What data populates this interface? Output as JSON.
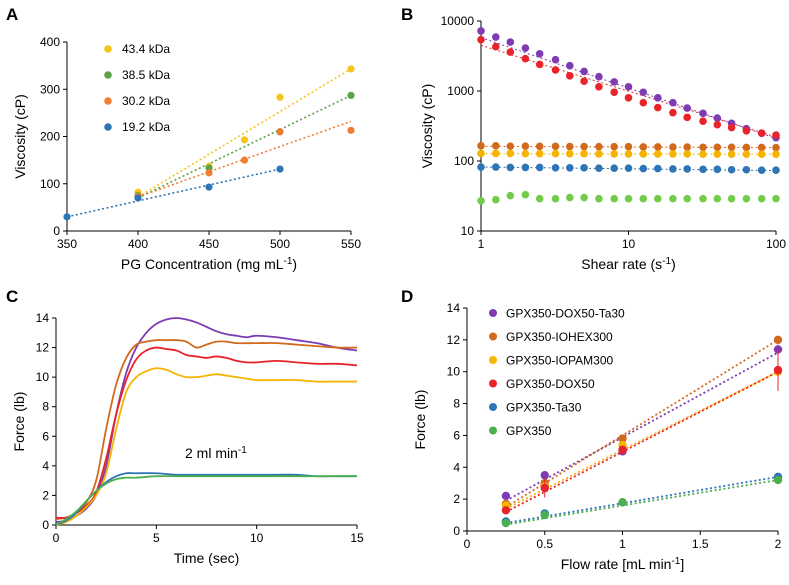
{
  "chart_data": [
    {
      "panel": "A",
      "type": "scatter",
      "xlabel": "PG Concentration (mg mL",
      "xlabel_sup": "-1",
      "xlabel_end": ")",
      "ylabel": "Viscosity (cP)",
      "xlim": [
        350,
        550
      ],
      "ylim": [
        0,
        400
      ],
      "xticks": [
        350,
        400,
        450,
        500,
        550
      ],
      "yticks": [
        0,
        100,
        200,
        300,
        400
      ],
      "legend_position": "top-left",
      "series": [
        {
          "name": "43.4 kDa",
          "color": "#F5C51B",
          "x": [
            400,
            450,
            475,
            500,
            550
          ],
          "y": [
            82,
            137,
            193,
            283,
            343
          ],
          "fit": [
            [
              400,
              72
            ],
            [
              550,
              343
            ]
          ]
        },
        {
          "name": "38.5 kDa",
          "color": "#5AA447",
          "x": [
            400,
            450,
            500,
            550
          ],
          "y": [
            75,
            133,
            210,
            287
          ],
          "fit": [
            [
              400,
              70
            ],
            [
              550,
              287
            ]
          ]
        },
        {
          "name": "30.2 kDa",
          "color": "#EE7E33",
          "x": [
            400,
            450,
            475,
            500,
            550
          ],
          "y": [
            73,
            123,
            150,
            210,
            213
          ],
          "fit": [
            [
              400,
              72
            ],
            [
              550,
              232
            ]
          ]
        },
        {
          "name": "19.2 kDa",
          "color": "#2E75B6",
          "x": [
            350,
            400,
            450,
            500
          ],
          "y": [
            30,
            70,
            93,
            131
          ],
          "fit": [
            [
              350,
              30
            ],
            [
              500,
              131
            ]
          ]
        }
      ]
    },
    {
      "panel": "B",
      "type": "scatter",
      "xlabel": "Shear rate (s",
      "xlabel_sup": "-1",
      "xlabel_end": ")",
      "ylabel": "Viscosity (cP)",
      "xscale": "log",
      "yscale": "log",
      "xlim": [
        1,
        100
      ],
      "ylim": [
        10,
        10000
      ],
      "xticks": [
        1,
        10,
        100
      ],
      "yticks": [
        10,
        100,
        1000,
        10000
      ],
      "series": [
        {
          "name": "GPX350-DOX50-Ta30",
          "color": "#7E3BB2",
          "x": [
            1,
            1.26,
            1.58,
            2,
            2.5,
            3.2,
            4,
            5,
            6.3,
            8,
            10,
            12.6,
            15.8,
            20,
            25,
            32,
            40,
            50,
            63,
            80,
            100
          ],
          "y": [
            7200,
            5900,
            5000,
            4100,
            3400,
            2800,
            2300,
            1900,
            1600,
            1350,
            1150,
            960,
            800,
            680,
            570,
            480,
            410,
            345,
            290,
            250,
            215
          ],
          "fit": [
            [
              1,
              5800
            ],
            [
              100,
              210
            ]
          ]
        },
        {
          "name": "GPX350-DOX50",
          "color": "#E8232A",
          "x": [
            1,
            1.26,
            1.58,
            2,
            2.5,
            3.2,
            4,
            5,
            6.3,
            8,
            10,
            12.6,
            15.8,
            20,
            25,
            32,
            40,
            50,
            63,
            80,
            100
          ],
          "y": [
            5400,
            4300,
            3600,
            2900,
            2400,
            2000,
            1650,
            1380,
            1150,
            960,
            800,
            680,
            580,
            490,
            420,
            370,
            330,
            300,
            270,
            250,
            235
          ],
          "fit": [
            [
              1,
              4500
            ],
            [
              100,
              220
            ]
          ]
        },
        {
          "name": "GPX350-IOHEX300",
          "color": "#D26A1E",
          "x": [
            1,
            1.26,
            1.58,
            2,
            2.5,
            3.2,
            4,
            5,
            6.3,
            8,
            10,
            12.6,
            15.8,
            20,
            25,
            32,
            40,
            50,
            63,
            80,
            100
          ],
          "y": [
            165,
            165,
            163,
            163,
            162,
            162,
            161,
            161,
            160,
            160,
            160,
            159,
            159,
            158,
            158,
            157,
            157,
            157,
            156,
            156,
            155
          ],
          "fit": [
            [
              1,
              162
            ],
            [
              100,
              155
            ]
          ]
        },
        {
          "name": "GPX350-IOPAM300",
          "color": "#F4B400",
          "x": [
            1,
            1.26,
            1.58,
            2,
            2.5,
            3.2,
            4,
            5,
            6.3,
            8,
            10,
            12.6,
            15.8,
            20,
            25,
            32,
            40,
            50,
            63,
            80,
            100
          ],
          "y": [
            128,
            128,
            128,
            127,
            127,
            127,
            127,
            127,
            126,
            126,
            126,
            126,
            126,
            126,
            126,
            125,
            125,
            125,
            125,
            125,
            125
          ],
          "fit": [
            [
              1,
              127
            ],
            [
              100,
              125
            ]
          ]
        },
        {
          "name": "GPX350-Ta30",
          "color": "#2E75B6",
          "x": [
            1,
            1.26,
            1.58,
            2,
            2.5,
            3.2,
            4,
            5,
            6.3,
            8,
            10,
            12.6,
            15.8,
            20,
            25,
            32,
            40,
            50,
            63,
            80,
            100
          ],
          "y": [
            82,
            82,
            81,
            81,
            81,
            80,
            80,
            80,
            79,
            79,
            79,
            78,
            78,
            77,
            77,
            76,
            76,
            75,
            75,
            74,
            74
          ],
          "fit": [
            [
              1,
              82
            ],
            [
              100,
              73
            ]
          ]
        },
        {
          "name": "GPX350",
          "color": "#72CC4A",
          "x": [
            1,
            1.26,
            1.58,
            2,
            2.5,
            3.2,
            4,
            5,
            6.3,
            8,
            10,
            12.6,
            15.8,
            20,
            25,
            32,
            40,
            50,
            63,
            80,
            100
          ],
          "y": [
            27,
            28,
            32,
            33,
            29,
            29,
            30,
            30,
            29,
            29,
            29,
            29,
            29,
            29,
            29,
            29,
            29,
            29,
            29,
            29,
            29
          ]
        }
      ]
    },
    {
      "panel": "C",
      "type": "line",
      "xlabel": "Time (sec)",
      "ylabel": "Force (lb)",
      "xlim": [
        0,
        15
      ],
      "ylim": [
        0,
        14
      ],
      "xticks": [
        0,
        5,
        10,
        15
      ],
      "yticks": [
        0,
        2,
        4,
        6,
        8,
        10,
        12,
        14
      ],
      "annotation": "2 ml min",
      "annotation_sup": "-1",
      "series": [
        {
          "name": "GPX350-DOX50-Ta30",
          "color": "#7E3BB2",
          "x": [
            0,
            0.5,
            1,
            1.5,
            2,
            2.5,
            3,
            3.5,
            4,
            4.5,
            5,
            5.5,
            6,
            6.5,
            7,
            7.5,
            8,
            8.5,
            9,
            9.5,
            10,
            11,
            12,
            13,
            14,
            15
          ],
          "y": [
            0.2,
            0.3,
            0.6,
            1.1,
            2.0,
            4.0,
            7.5,
            10.3,
            12.0,
            13.0,
            13.6,
            13.9,
            14.0,
            13.9,
            13.7,
            13.4,
            13.1,
            12.9,
            12.8,
            12.7,
            12.8,
            12.7,
            12.5,
            12.3,
            12.0,
            11.8
          ]
        },
        {
          "name": "GPX350-IOHEX300",
          "color": "#D26A1E",
          "x": [
            0,
            0.5,
            1,
            1.5,
            2,
            2.5,
            3,
            3.5,
            4,
            4.5,
            5,
            5.5,
            6,
            6.5,
            7,
            7.5,
            8,
            8.5,
            9,
            10,
            11,
            12,
            13,
            14,
            15
          ],
          "y": [
            0.4,
            0.5,
            0.8,
            1.5,
            3.0,
            6.5,
            9.5,
            11.3,
            12.2,
            12.4,
            12.5,
            12.5,
            12.5,
            12.4,
            12.0,
            12.2,
            12.4,
            12.4,
            12.3,
            12.3,
            12.3,
            12.2,
            12.1,
            12.0,
            12.0
          ]
        },
        {
          "name": "GPX350-DOX50",
          "color": "#E8232A",
          "x": [
            0,
            0.5,
            1,
            1.5,
            2,
            2.5,
            3,
            3.5,
            4,
            4.5,
            5,
            5.5,
            6,
            6.5,
            7,
            7.5,
            8,
            8.5,
            9,
            9.5,
            10,
            11,
            12,
            13,
            14,
            15
          ],
          "y": [
            0.5,
            0.5,
            0.8,
            1.3,
            2.2,
            4.5,
            7.5,
            9.8,
            11.2,
            11.8,
            12.0,
            11.9,
            11.8,
            11.5,
            11.4,
            11.3,
            11.4,
            11.3,
            11.1,
            11.0,
            11.0,
            11.1,
            11.0,
            10.9,
            10.9,
            10.8
          ]
        },
        {
          "name": "GPX350-IOPAM300",
          "color": "#F4B400",
          "x": [
            0,
            0.5,
            1,
            1.5,
            2,
            2.5,
            3,
            3.5,
            4,
            4.5,
            5,
            5.5,
            6,
            6.5,
            7,
            7.5,
            8,
            8.5,
            9,
            9.5,
            10,
            11,
            12,
            13,
            14,
            15
          ],
          "y": [
            0.0,
            0.2,
            0.6,
            1.2,
            2.0,
            3.5,
            6.5,
            9.0,
            10.0,
            10.4,
            10.6,
            10.5,
            10.2,
            10.0,
            10.0,
            10.1,
            10.2,
            10.1,
            10.0,
            9.9,
            9.8,
            9.8,
            9.8,
            9.7,
            9.7,
            9.7
          ]
        },
        {
          "name": "GPX350-Ta30",
          "color": "#2E75B6",
          "x": [
            0,
            0.5,
            1,
            1.5,
            2,
            2.5,
            3,
            3.5,
            4,
            5,
            6,
            7,
            8,
            9,
            10,
            11,
            12,
            13,
            14,
            15
          ],
          "y": [
            0.0,
            0.3,
            0.8,
            1.6,
            2.3,
            2.9,
            3.3,
            3.5,
            3.5,
            3.5,
            3.4,
            3.4,
            3.4,
            3.4,
            3.4,
            3.4,
            3.4,
            3.3,
            3.3,
            3.3
          ]
        },
        {
          "name": "GPX350",
          "color": "#4CAF50",
          "x": [
            0,
            0.5,
            1,
            1.5,
            2,
            2.5,
            3,
            3.5,
            4,
            5,
            6,
            7,
            8,
            9,
            10,
            11,
            12,
            13,
            14,
            15
          ],
          "y": [
            0.0,
            0.4,
            0.9,
            1.6,
            2.3,
            2.8,
            3.1,
            3.2,
            3.2,
            3.3,
            3.3,
            3.3,
            3.3,
            3.3,
            3.3,
            3.3,
            3.3,
            3.3,
            3.3,
            3.3
          ]
        }
      ]
    },
    {
      "panel": "D",
      "type": "scatter",
      "xlabel": "Flow rate [mL min",
      "xlabel_sup": "-1",
      "xlabel_end": "]",
      "ylabel": "Force (lb)",
      "xlim": [
        0,
        2
      ],
      "ylim": [
        0,
        14
      ],
      "xticks": [
        0,
        0.5,
        1,
        1.5,
        2
      ],
      "yticks": [
        0,
        2,
        4,
        6,
        8,
        10,
        12,
        14
      ],
      "legend_position": "top-left",
      "series": [
        {
          "name": "GPX350-DOX50-Ta30",
          "color": "#7E3BB2",
          "x": [
            0.25,
            0.5,
            1,
            2
          ],
          "y": [
            2.2,
            3.5,
            5.0,
            11.4
          ],
          "err": [
            0,
            0.2,
            0,
            0.3
          ],
          "fit": [
            [
              0.25,
              1.9
            ],
            [
              2,
              11.2
            ]
          ]
        },
        {
          "name": "GPX350-IOHEX300",
          "color": "#D26A1E",
          "x": [
            0.25,
            0.5,
            1,
            2
          ],
          "y": [
            1.7,
            3.0,
            5.8,
            12.0
          ],
          "err": [
            0,
            0,
            0,
            0
          ],
          "fit": [
            [
              0.25,
              1.5
            ],
            [
              2,
              12.0
            ]
          ]
        },
        {
          "name": "GPX350-IOPAM300",
          "color": "#F4B400",
          "x": [
            0.25,
            0.5,
            1,
            2
          ],
          "y": [
            1.6,
            2.8,
            5.4,
            10.0
          ],
          "err": [
            0,
            0,
            0,
            0
          ],
          "fit": [
            [
              0.25,
              1.4
            ],
            [
              2,
              10.0
            ]
          ]
        },
        {
          "name": "GPX350-DOX50",
          "color": "#E8232A",
          "x": [
            0.25,
            0.5,
            1,
            2
          ],
          "y": [
            1.3,
            2.7,
            5.1,
            10.1
          ],
          "err": [
            0,
            0.6,
            0,
            1.3
          ],
          "fit": [
            [
              0.25,
              1.2
            ],
            [
              2,
              10.0
            ]
          ]
        },
        {
          "name": "GPX350-Ta30",
          "color": "#2E75B6",
          "x": [
            0.25,
            0.5,
            1,
            2
          ],
          "y": [
            0.6,
            1.1,
            1.8,
            3.4
          ],
          "err": [
            0,
            0,
            0,
            0
          ],
          "fit": [
            [
              0.25,
              0.5
            ],
            [
              2,
              3.4
            ]
          ]
        },
        {
          "name": "GPX350",
          "color": "#4CAF50",
          "x": [
            0.25,
            0.5,
            1,
            2
          ],
          "y": [
            0.5,
            1.0,
            1.8,
            3.2
          ],
          "err": [
            0,
            0,
            0,
            0
          ],
          "fit": [
            [
              0.25,
              0.4
            ],
            [
              2,
              3.2
            ]
          ]
        }
      ]
    }
  ]
}
